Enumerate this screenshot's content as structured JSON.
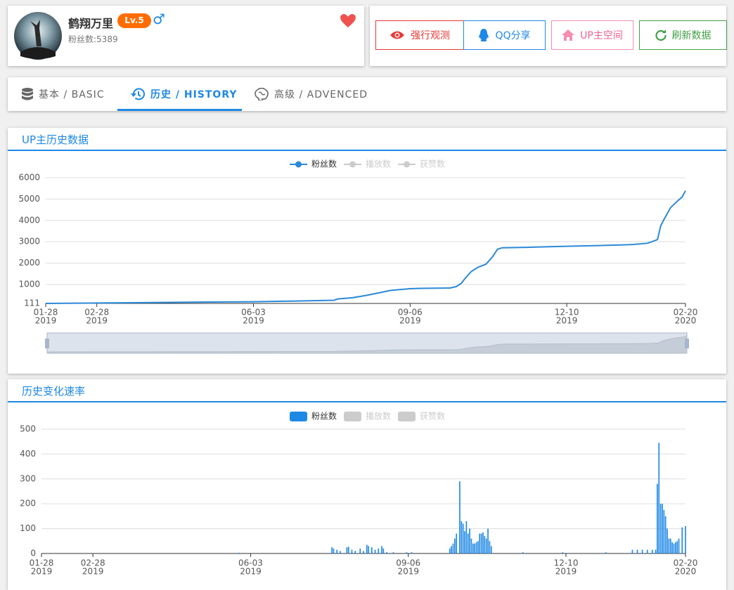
{
  "profile": {
    "name": "鹤翔万里",
    "level": "Lv.5",
    "gender": "♂",
    "fans": "粉丝数:5389"
  },
  "buttons": [
    "强行观测",
    "QQ分享",
    "UP主空间",
    "刷新数据"
  ],
  "tabs": [
    "基本 / BASIC",
    "历史 / HISTORY",
    "高级 / ADVENCED"
  ],
  "chart_data": [
    {
      "type": "line",
      "title": "UP主历史数据",
      "x": [
        "2019-01-28",
        "2019-02-28",
        "2019-03-27",
        "2019-05-08",
        "2019-06-03",
        "2019-06-28",
        "2019-07-22",
        "2019-07-24",
        "2019-08-02",
        "2019-08-10",
        "2019-08-19",
        "2019-08-25",
        "2019-09-06",
        "2019-09-13",
        "2019-09-30",
        "2019-10-04",
        "2019-10-07",
        "2019-10-09",
        "2019-10-13",
        "2019-10-17",
        "2019-10-22",
        "2019-10-26",
        "2019-10-29",
        "2019-11-01",
        "2019-11-16",
        "2019-12-10",
        "2019-12-29",
        "2020-01-19",
        "2020-01-28",
        "2020-02-03",
        "2020-02-05",
        "2020-02-07",
        "2020-02-11",
        "2020-02-15",
        "2020-02-18",
        "2020-02-20"
      ],
      "series": [
        {
          "name": "粉丝数",
          "color": "#2c89d8",
          "values": [
            111,
            130,
            150,
            175,
            190,
            220,
            260,
            320,
            380,
            480,
            620,
            720,
            800,
            820,
            830,
            900,
            1050,
            1250,
            1600,
            1800,
            1950,
            2300,
            2650,
            2720,
            2740,
            2790,
            2820,
            2870,
            2930,
            3100,
            3750,
            4050,
            4600,
            4900,
            5100,
            5389
          ]
        }
      ],
      "hidden_series": [
        "播放数",
        "获赞数"
      ],
      "hidden_color": "#cccccc",
      "xlim": [
        "2019-01-28",
        "2020-02-20"
      ],
      "xticks": [
        {
          "value": "2019-01-28",
          "label": "01-28",
          "year": "2019"
        },
        {
          "value": "2019-02-28",
          "label": "02-28",
          "year": "2019"
        },
        {
          "value": "2019-06-03",
          "label": "06-03",
          "year": "2019"
        },
        {
          "value": "2019-09-06",
          "label": "09-06",
          "year": "2019"
        },
        {
          "value": "2019-12-10",
          "label": "12-10",
          "year": "2019"
        },
        {
          "value": "2020-02-20",
          "label": "02-20",
          "year": "2020"
        }
      ],
      "ylim": [
        111,
        6000
      ],
      "yticks": [
        111,
        1000,
        2000,
        3000,
        4000,
        5000,
        6000
      ],
      "grid": true,
      "zoom_slider": true
    },
    {
      "type": "bar",
      "title": "历史变化速率",
      "x": [
        "2019-02-06",
        "2019-05-27",
        "2019-07-22",
        "2019-07-23",
        "2019-07-25",
        "2019-07-27",
        "2019-07-31",
        "2019-08-01",
        "2019-08-03",
        "2019-08-05",
        "2019-08-08",
        "2019-08-10",
        "2019-08-12",
        "2019-08-13",
        "2019-08-15",
        "2019-08-17",
        "2019-08-19",
        "2019-08-21",
        "2019-08-22",
        "2019-08-24",
        "2019-08-28",
        "2019-09-05",
        "2019-09-08",
        "2019-10-01",
        "2019-10-02",
        "2019-10-03",
        "2019-10-04",
        "2019-10-05",
        "2019-10-07",
        "2019-10-08",
        "2019-10-09",
        "2019-10-10",
        "2019-10-11",
        "2019-10-12",
        "2019-10-13",
        "2019-10-14",
        "2019-10-15",
        "2019-10-16",
        "2019-10-17",
        "2019-10-18",
        "2019-10-19",
        "2019-10-20",
        "2019-10-21",
        "2019-10-22",
        "2019-10-23",
        "2019-10-24",
        "2019-10-25",
        "2019-10-26",
        "2019-11-14",
        "2019-12-08",
        "2020-01-03",
        "2020-01-19",
        "2020-01-22",
        "2020-01-25",
        "2020-01-28",
        "2020-01-31",
        "2020-02-02",
        "2020-02-03",
        "2020-02-04",
        "2020-02-05",
        "2020-02-06",
        "2020-02-07",
        "2020-02-08",
        "2020-02-09",
        "2020-02-10",
        "2020-02-11",
        "2020-02-12",
        "2020-02-13",
        "2020-02-14",
        "2020-02-15",
        "2020-02-16",
        "2020-02-18",
        "2020-02-20"
      ],
      "series": [
        {
          "name": "粉丝数",
          "color": "#1e88e5",
          "values": [
            2,
            3,
            25,
            20,
            15,
            10,
            25,
            27,
            15,
            10,
            20,
            10,
            35,
            30,
            25,
            15,
            20,
            30,
            20,
            5,
            5,
            5,
            5,
            20,
            30,
            40,
            60,
            80,
            290,
            130,
            120,
            90,
            130,
            80,
            100,
            60,
            40,
            40,
            45,
            50,
            80,
            80,
            85,
            70,
            60,
            100,
            50,
            30,
            5,
            5,
            5,
            15,
            15,
            15,
            15,
            15,
            15,
            280,
            445,
            200,
            200,
            175,
            150,
            100,
            60,
            60,
            45,
            40,
            45,
            50,
            60,
            105,
            110
          ]
        }
      ],
      "hidden_series": [
        "播放数",
        "获赞数"
      ],
      "hidden_color": "#cccccc",
      "xlim": [
        "2019-01-28",
        "2020-02-20"
      ],
      "xticks": [
        {
          "value": "2019-01-28",
          "label": "01-28",
          "year": "2019"
        },
        {
          "value": "2019-02-28",
          "label": "02-28",
          "year": "2019"
        },
        {
          "value": "2019-06-03",
          "label": "06-03",
          "year": "2019"
        },
        {
          "value": "2019-09-06",
          "label": "09-06",
          "year": "2019"
        },
        {
          "value": "2019-12-10",
          "label": "12-10",
          "year": "2019"
        },
        {
          "value": "2020-02-20",
          "label": "02-20",
          "year": "2020"
        }
      ],
      "ylim": [
        0,
        500
      ],
      "yticks": [
        0,
        100,
        200,
        300,
        400,
        500
      ],
      "grid": true
    }
  ]
}
